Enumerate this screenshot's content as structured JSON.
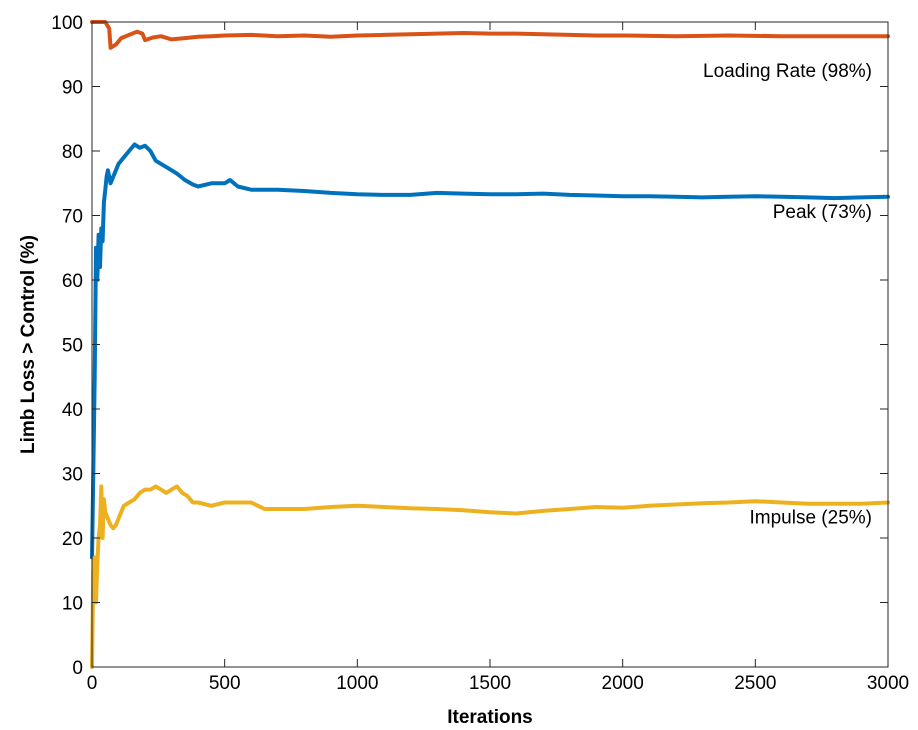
{
  "chart_data": {
    "type": "line",
    "title": "",
    "xlabel": "Iterations",
    "ylabel": "Limb Loss > Control (%)",
    "xlim": [
      0,
      3000
    ],
    "ylim": [
      0,
      100
    ],
    "xticks": [
      0,
      500,
      1000,
      1500,
      2000,
      2500,
      3000
    ],
    "yticks": [
      0,
      10,
      20,
      30,
      40,
      50,
      60,
      70,
      80,
      90,
      100
    ],
    "grid": false,
    "legend": "none",
    "series": [
      {
        "name": "Loading Rate (98%)",
        "color": "#d95319",
        "points": [
          [
            0,
            100
          ],
          [
            50,
            100
          ],
          [
            65,
            99
          ],
          [
            70,
            96
          ],
          [
            90,
            96.5
          ],
          [
            110,
            97.5
          ],
          [
            140,
            98
          ],
          [
            170,
            98.5
          ],
          [
            190,
            98.2
          ],
          [
            200,
            97.2
          ],
          [
            230,
            97.6
          ],
          [
            260,
            97.8
          ],
          [
            300,
            97.3
          ],
          [
            350,
            97.5
          ],
          [
            400,
            97.7
          ],
          [
            450,
            97.8
          ],
          [
            500,
            97.9
          ],
          [
            600,
            98
          ],
          [
            700,
            97.8
          ],
          [
            800,
            97.9
          ],
          [
            900,
            97.7
          ],
          [
            1000,
            97.9
          ],
          [
            1100,
            98
          ],
          [
            1200,
            98.1
          ],
          [
            1300,
            98.2
          ],
          [
            1400,
            98.3
          ],
          [
            1500,
            98.2
          ],
          [
            1600,
            98.2
          ],
          [
            1700,
            98.1
          ],
          [
            1800,
            98
          ],
          [
            1900,
            97.9
          ],
          [
            2000,
            97.9
          ],
          [
            2200,
            97.8
          ],
          [
            2400,
            97.9
          ],
          [
            2600,
            97.8
          ],
          [
            2800,
            97.8
          ],
          [
            3000,
            97.8
          ]
        ]
      },
      {
        "name": "Peak (73%)",
        "color": "#0072bd",
        "points": [
          [
            0,
            17
          ],
          [
            5,
            30
          ],
          [
            10,
            45
          ],
          [
            15,
            65
          ],
          [
            20,
            60
          ],
          [
            25,
            67
          ],
          [
            30,
            62
          ],
          [
            35,
            68
          ],
          [
            40,
            66
          ],
          [
            45,
            72
          ],
          [
            50,
            74
          ],
          [
            55,
            76
          ],
          [
            60,
            77
          ],
          [
            70,
            75
          ],
          [
            80,
            76
          ],
          [
            90,
            77
          ],
          [
            100,
            78
          ],
          [
            120,
            79
          ],
          [
            140,
            80
          ],
          [
            160,
            81
          ],
          [
            180,
            80.5
          ],
          [
            200,
            80.8
          ],
          [
            220,
            80
          ],
          [
            240,
            78.5
          ],
          [
            260,
            78
          ],
          [
            280,
            77.5
          ],
          [
            300,
            77
          ],
          [
            320,
            76.5
          ],
          [
            350,
            75.5
          ],
          [
            380,
            74.8
          ],
          [
            400,
            74.5
          ],
          [
            450,
            75
          ],
          [
            500,
            75
          ],
          [
            520,
            75.5
          ],
          [
            550,
            74.5
          ],
          [
            600,
            74
          ],
          [
            700,
            74
          ],
          [
            800,
            73.8
          ],
          [
            900,
            73.5
          ],
          [
            1000,
            73.3
          ],
          [
            1100,
            73.2
          ],
          [
            1200,
            73.2
          ],
          [
            1300,
            73.5
          ],
          [
            1400,
            73.4
          ],
          [
            1500,
            73.3
          ],
          [
            1600,
            73.3
          ],
          [
            1700,
            73.4
          ],
          [
            1800,
            73.2
          ],
          [
            1900,
            73.1
          ],
          [
            2000,
            73
          ],
          [
            2100,
            73
          ],
          [
            2200,
            72.9
          ],
          [
            2300,
            72.8
          ],
          [
            2400,
            72.9
          ],
          [
            2500,
            73
          ],
          [
            2600,
            72.9
          ],
          [
            2700,
            72.8
          ],
          [
            2800,
            72.7
          ],
          [
            2900,
            72.8
          ],
          [
            3000,
            72.9
          ]
        ]
      },
      {
        "name": "Impulse (25%)",
        "color": "#edb120",
        "points": [
          [
            0,
            0
          ],
          [
            5,
            15
          ],
          [
            10,
            17
          ],
          [
            15,
            10
          ],
          [
            20,
            16
          ],
          [
            25,
            20
          ],
          [
            30,
            22
          ],
          [
            35,
            28
          ],
          [
            40,
            20
          ],
          [
            45,
            26
          ],
          [
            50,
            24
          ],
          [
            60,
            23
          ],
          [
            70,
            22
          ],
          [
            80,
            21.5
          ],
          [
            90,
            22
          ],
          [
            100,
            23
          ],
          [
            120,
            25
          ],
          [
            140,
            25.5
          ],
          [
            160,
            26
          ],
          [
            180,
            27
          ],
          [
            200,
            27.5
          ],
          [
            220,
            27.5
          ],
          [
            240,
            28
          ],
          [
            260,
            27.5
          ],
          [
            280,
            27
          ],
          [
            300,
            27.5
          ],
          [
            320,
            28
          ],
          [
            340,
            27
          ],
          [
            360,
            26.5
          ],
          [
            380,
            25.5
          ],
          [
            400,
            25.5
          ],
          [
            450,
            25
          ],
          [
            500,
            25.5
          ],
          [
            550,
            25.5
          ],
          [
            600,
            25.5
          ],
          [
            650,
            24.5
          ],
          [
            700,
            24.5
          ],
          [
            800,
            24.5
          ],
          [
            900,
            24.8
          ],
          [
            1000,
            25
          ],
          [
            1100,
            24.8
          ],
          [
            1200,
            24.6
          ],
          [
            1300,
            24.5
          ],
          [
            1400,
            24.3
          ],
          [
            1500,
            24
          ],
          [
            1600,
            23.8
          ],
          [
            1700,
            24.2
          ],
          [
            1800,
            24.5
          ],
          [
            1900,
            24.8
          ],
          [
            2000,
            24.7
          ],
          [
            2100,
            25
          ],
          [
            2200,
            25.2
          ],
          [
            2300,
            25.4
          ],
          [
            2400,
            25.5
          ],
          [
            2500,
            25.7
          ],
          [
            2600,
            25.5
          ],
          [
            2700,
            25.3
          ],
          [
            2800,
            25.3
          ],
          [
            2900,
            25.3
          ],
          [
            3000,
            25.5
          ]
        ]
      }
    ]
  }
}
